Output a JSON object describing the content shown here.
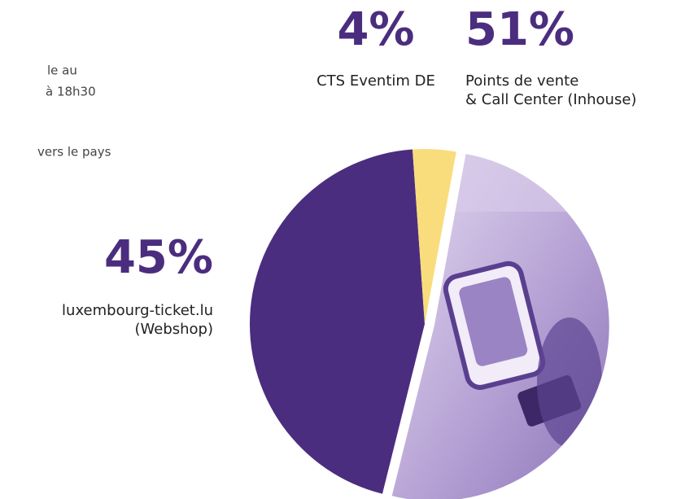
{
  "fragments": [
    "le au",
    "à 18h30",
    "vers le pays"
  ],
  "chart_data": {
    "type": "pie",
    "categories": [
      [
        "luxembourg-ticket.lu",
        "(Webshop)"
      ],
      [
        "CTS Eventim DE"
      ],
      [
        "Points de vente",
        "& Call Center (Inhouse)"
      ]
    ],
    "values": [
      45,
      4,
      51
    ],
    "value_labels": [
      "45%",
      "4%",
      "51%"
    ],
    "colors": [
      "#4b2d7f",
      "#f9dd7c",
      "#c2b1dd"
    ]
  }
}
